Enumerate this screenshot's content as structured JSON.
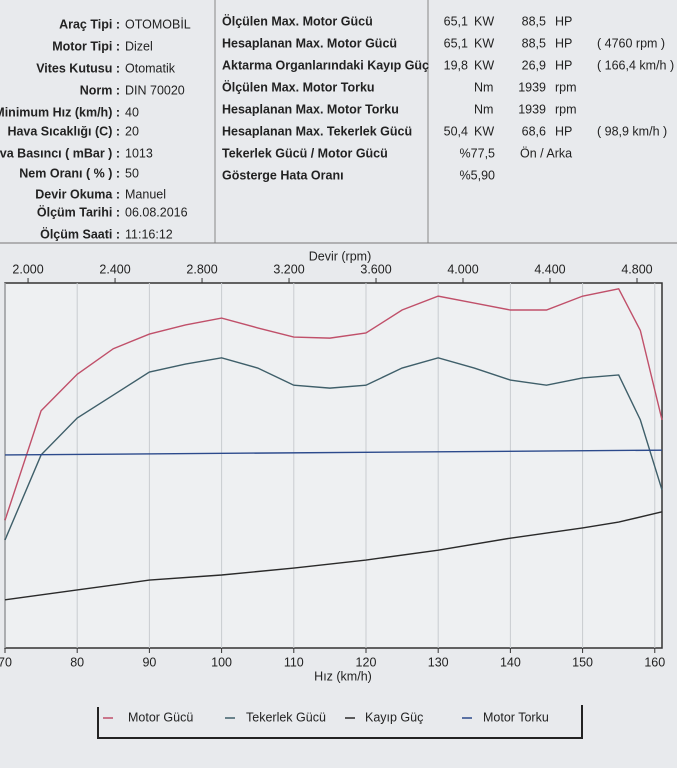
{
  "info": {
    "rows": [
      {
        "label": "Araç Tipi :",
        "value": "OTOMOBİL"
      },
      {
        "label": "Motor Tipi :",
        "value": "Dizel"
      },
      {
        "label": "Vites Kutusu :",
        "value": "Otomatik"
      },
      {
        "label": "Norm :",
        "value": "DIN 70020"
      },
      {
        "label": "Minimum Hız (km/h) :",
        "value": "40"
      },
      {
        "label": "Hava Sıcaklığı (C) :",
        "value": "20"
      },
      {
        "label": "Hava Basıncı ( mBar ) :",
        "value": "1013"
      },
      {
        "label": "Nem Oranı ( % ) :",
        "value": "50"
      },
      {
        "label": "Devir Okuma :",
        "value": "Manuel"
      },
      {
        "label": "Ölçüm Tarihi :",
        "value": "06.08.2016"
      },
      {
        "label": "Ölçüm Saati :",
        "value": "11:16:12"
      }
    ]
  },
  "results": {
    "rows": [
      {
        "label": "Ölçülen Max. Motor Gücü",
        "a": "65,1",
        "a_unit": "KW",
        "b": "88,5",
        "b_unit": "HP"
      },
      {
        "label": "Hesaplanan Max. Motor Gücü",
        "a": "65,1",
        "a_unit": "KW",
        "b": "88,5",
        "b_unit": "HP",
        "note": "( 4760 rpm )"
      },
      {
        "label": "Aktarma Organlarındaki Kayıp Güç",
        "a": "19,8",
        "a_unit": "KW",
        "b": "26,9",
        "b_unit": "HP",
        "note": "( 166,4 km/h )"
      },
      {
        "label": "Ölçülen Max. Motor Torku",
        "a_unit": "Nm",
        "b": "1939",
        "b_unit": "rpm"
      },
      {
        "label": "Hesaplanan Max. Motor Torku",
        "a_unit": "Nm",
        "b": "1939",
        "b_unit": "rpm"
      },
      {
        "label": "Hesaplanan Max. Tekerlek Gücü",
        "a": "50,4",
        "a_unit": "KW",
        "b": "68,6",
        "b_unit": "HP",
        "note": "( 98,9 km/h )"
      },
      {
        "label": "Tekerlek Gücü / Motor Gücü",
        "a": "%77,5",
        "b": "Ön / Arka"
      },
      {
        "label": "Gösterge Hata Oranı",
        "a": "%5,90"
      }
    ]
  },
  "chart_data": {
    "type": "line",
    "x_label": "Hız (km/h)",
    "x2_label": "Devir (rpm)",
    "xlim": [
      70,
      161
    ],
    "xticks": [
      70,
      80,
      90,
      100,
      110,
      120,
      130,
      140,
      150,
      160
    ],
    "x2lim": [
      1894,
      4915
    ],
    "x2ticks": [
      {
        "value": 2000,
        "label": "2.000"
      },
      {
        "value": 2400,
        "label": "2.400"
      },
      {
        "value": 2800,
        "label": "2.800"
      },
      {
        "value": 3200,
        "label": "3.200"
      },
      {
        "value": 3600,
        "label": "3.600"
      },
      {
        "value": 4000,
        "label": "4.000"
      },
      {
        "value": 4400,
        "label": "4.400"
      },
      {
        "value": 4800,
        "label": "4.800"
      }
    ],
    "ylim": [
      0,
      100
    ],
    "grid": true,
    "series": [
      {
        "name": "Motor Gücü",
        "color": "#c0506a",
        "x": [
          70,
          75,
          80,
          85,
          90,
          95,
          100,
          105,
          110,
          115,
          120,
          125,
          130,
          135,
          140,
          145,
          150,
          155,
          158,
          161
        ],
        "values": [
          35,
          65,
          75,
          82,
          86,
          88.5,
          90.4,
          87.7,
          85.2,
          84.9,
          86.3,
          92.6,
          96.4,
          94.5,
          92.6,
          92.6,
          96.4,
          98.4,
          87,
          62.5
        ]
      },
      {
        "name": "Tekerlek Gücü",
        "color": "#3f5f6a",
        "x": [
          70,
          75,
          80,
          85,
          90,
          95,
          100,
          105,
          110,
          115,
          120,
          125,
          130,
          135,
          140,
          145,
          150,
          155,
          158,
          161
        ],
        "values": [
          29.6,
          52.9,
          63,
          69.3,
          75.6,
          77.8,
          79.5,
          76.7,
          72,
          71.2,
          72,
          76.7,
          79.5,
          76.7,
          73.4,
          72,
          74,
          74.8,
          62.5,
          43.3
        ]
      },
      {
        "name": "Kayıp Güç",
        "color": "#2a2a2a",
        "x": [
          70,
          80,
          90,
          100,
          110,
          120,
          130,
          140,
          150,
          155,
          161
        ],
        "values": [
          13.2,
          15.9,
          18.6,
          20,
          21.9,
          24.1,
          26.8,
          30.1,
          32.9,
          34.5,
          37.3
        ]
      },
      {
        "name": "Motor Torku",
        "color": "#2c4a8c",
        "x": [
          70,
          161
        ],
        "values": [
          52.9,
          54.2
        ]
      }
    ]
  }
}
